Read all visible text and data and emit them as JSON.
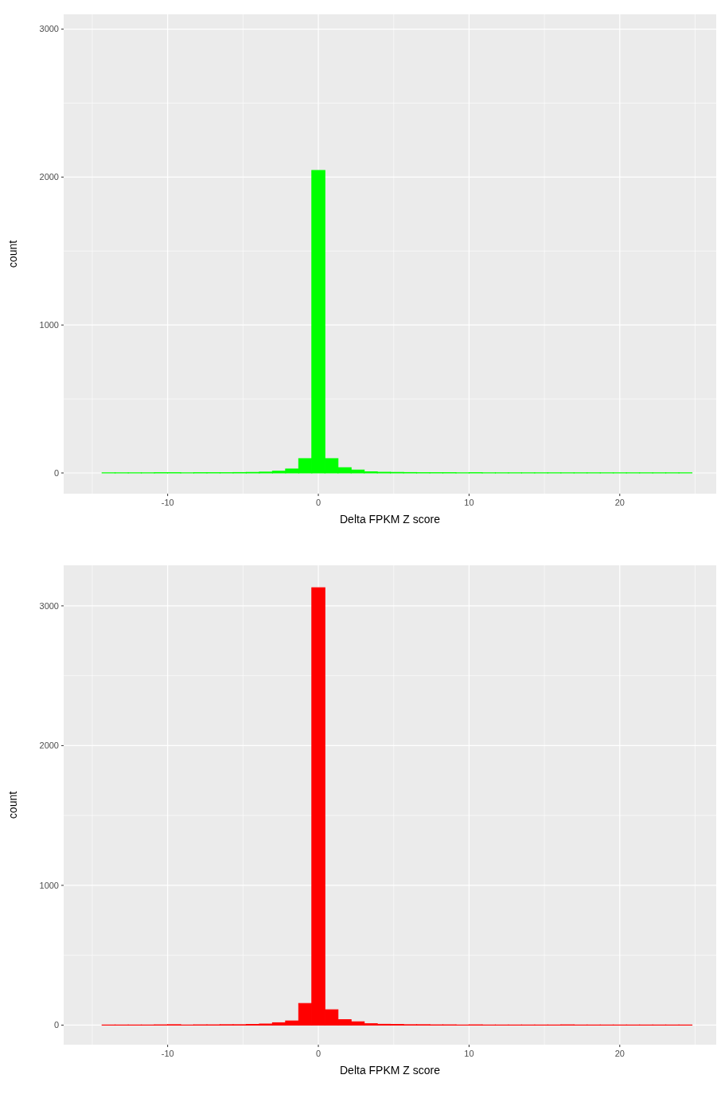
{
  "chart_data": [
    {
      "type": "histogram",
      "xlabel": "Delta FPKM Z score",
      "ylabel": "count",
      "color": "#00ff00",
      "bins": [
        -14.355,
        -13.485,
        -12.615,
        -11.745,
        -10.875,
        -10.005,
        -9.135,
        -8.265,
        -7.395,
        -6.525,
        -5.655,
        -4.785,
        -3.915,
        -3.045,
        -2.175,
        -1.305,
        -0.435,
        0.435,
        1.305,
        2.175,
        3.045,
        3.915,
        4.785,
        5.655,
        6.525,
        7.395,
        8.265,
        9.135,
        10.005,
        10.875,
        11.745,
        12.615,
        13.485,
        14.355,
        15.225,
        16.095,
        16.965,
        17.835,
        18.705,
        19.575,
        20.445,
        21.315,
        22.185,
        23.055,
        23.925,
        24.795
      ],
      "values": [
        1,
        1,
        1,
        1,
        2,
        2,
        1,
        2,
        2,
        2,
        3,
        4,
        6,
        12,
        27,
        97,
        2045,
        97,
        36,
        20,
        8,
        5,
        4,
        3,
        2,
        2,
        2,
        1,
        2,
        1,
        1,
        1,
        1,
        1,
        1,
        1,
        1,
        1,
        1,
        1,
        1,
        1,
        1,
        1,
        1
      ],
      "xlim": [
        -16.9,
        26.4
      ],
      "xticks": [
        -10,
        0,
        10,
        20
      ],
      "ylim": [
        -140,
        3100
      ],
      "yticks": [
        0,
        1000,
        2000,
        3000
      ],
      "grid": true
    },
    {
      "type": "histogram",
      "xlabel": "Delta FPKM Z score",
      "ylabel": "count",
      "color": "#ff0000",
      "bins": [
        -14.355,
        -13.485,
        -12.615,
        -11.745,
        -10.875,
        -10.005,
        -9.135,
        -8.265,
        -7.395,
        -6.525,
        -5.655,
        -4.785,
        -3.915,
        -3.045,
        -2.175,
        -1.305,
        -0.435,
        0.435,
        1.305,
        2.175,
        3.045,
        3.915,
        4.785,
        5.655,
        6.525,
        7.395,
        8.265,
        9.135,
        10.005,
        10.875,
        11.745,
        12.615,
        13.485,
        14.355,
        15.225,
        16.095,
        16.965,
        17.835,
        18.705,
        19.575,
        20.445,
        21.315,
        22.185,
        23.055,
        23.925,
        24.795
      ],
      "values": [
        1,
        1,
        1,
        1,
        2,
        3,
        1,
        2,
        2,
        3,
        3,
        5,
        8,
        17,
        30,
        155,
        3130,
        110,
        39,
        24,
        10,
        6,
        5,
        3,
        3,
        2,
        2,
        1,
        2,
        1,
        1,
        1,
        1,
        1,
        1,
        2,
        1,
        1,
        1,
        1,
        1,
        1,
        1,
        1,
        1
      ],
      "xlim": [
        -16.9,
        26.4
      ],
      "xticks": [
        -10,
        0,
        10,
        20
      ],
      "ylim": [
        -140,
        3290
      ],
      "yticks": [
        0,
        1000,
        2000,
        3000
      ],
      "grid": true
    }
  ]
}
